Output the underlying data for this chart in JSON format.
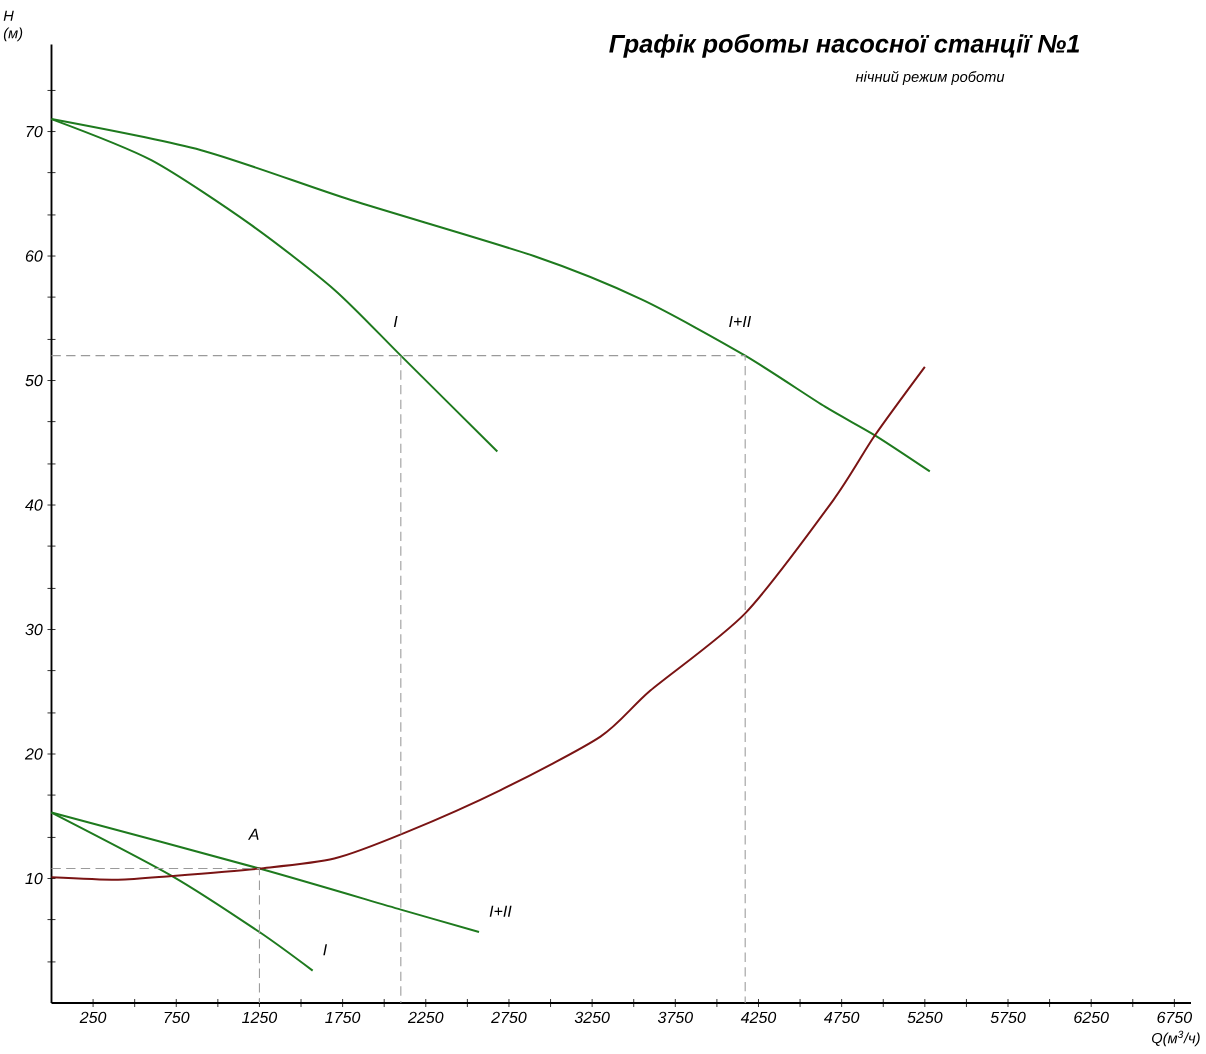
{
  "chart_data": {
    "type": "line",
    "title": "Графік роботы насосної станції №1",
    "subtitle": "нічний режим роботи",
    "xlabel": "Q(м$^{3}$/ч)",
    "ylabel": "H (м)",
    "xlim": [
      0,
      6850
    ],
    "ylim": [
      0,
      77
    ],
    "xticks": [
      250,
      {
        "value": 500,
        "label": null
      },
      750,
      {
        "value": 1000,
        "label": null
      },
      1250,
      {
        "value": 1500,
        "label": null
      },
      1750,
      {
        "value": 2000,
        "label": null
      },
      2250,
      {
        "value": 2500,
        "label": null
      },
      2750,
      {
        "value": 3000,
        "label": null
      },
      3250,
      {
        "value": 3500,
        "label": null
      },
      3750,
      {
        "value": 4000,
        "label": null
      },
      4250,
      {
        "value": 4500,
        "label": null
      },
      4750,
      {
        "value": 5000,
        "label": null
      },
      5250,
      {
        "value": 5500,
        "label": null
      },
      5750,
      {
        "value": 6000,
        "label": null
      },
      6250,
      {
        "value": 6500,
        "label": null
      },
      6750
    ],
    "yticks": [
      {
        "value": 3.3,
        "label": null
      },
      {
        "value": 6.7,
        "label": null
      },
      10,
      {
        "value": 13.3,
        "label": null
      },
      {
        "value": 16.7,
        "label": null
      },
      20,
      {
        "value": 23.3,
        "label": null
      },
      {
        "value": 26.7,
        "label": null
      },
      30,
      {
        "value": 33.3,
        "label": null
      },
      {
        "value": 36.7,
        "label": null
      },
      40,
      {
        "value": 43.3,
        "label": null
      },
      {
        "value": 46.7,
        "label": null
      },
      50,
      {
        "value": 53.3,
        "label": null
      },
      {
        "value": 56.7,
        "label": null
      },
      60,
      {
        "value": 63.3,
        "label": null
      },
      {
        "value": 66.7,
        "label": null
      },
      70,
      {
        "value": 73.3,
        "label": null
      }
    ],
    "series": [
      {
        "color": "#1e7a1e",
        "x": [
          0,
          600,
          1200,
          1700,
          2100,
          2680
        ],
        "values": [
          71,
          67.7,
          62.5,
          57.3,
          52,
          44.3
        ]
      },
      {
        "color": "#1e7a1e",
        "x": [
          0,
          900,
          1800,
          2900,
          3550,
          4170,
          4650,
          4950,
          5280
        ],
        "values": [
          71,
          68.5,
          64.5,
          60,
          56.5,
          52,
          47.9,
          45.6,
          42.7
        ]
      },
      {
        "color": "#1e7a1e",
        "x": [
          0,
          725,
          1250,
          1570
        ],
        "values": [
          15.3,
          10.2,
          5.7,
          2.6
        ]
      },
      {
        "color": "#1e7a1e",
        "x": [
          0,
          1250,
          2100,
          2570
        ],
        "values": [
          15.3,
          10.8,
          7.5,
          5.7
        ]
      },
      {
        "color": "#7a1414",
        "x": [
          0,
          400,
          725,
          1250,
          1700,
          2130,
          2700,
          3300,
          3600,
          4170,
          4700,
          4950,
          5250
        ],
        "values": [
          10.1,
          9.9,
          10.2,
          10.8,
          11.6,
          13.7,
          17.1,
          21.4,
          25.1,
          31.3,
          40.4,
          45.6,
          51.1
        ]
      },
      {
        "color": "#9a9a9a",
        "line_style": "dashed",
        "x": [
          0,
          1250,
          1250
        ],
        "values": [
          10.8,
          10.8,
          0
        ]
      },
      {
        "color": "#9a9a9a",
        "line_style": "dashed",
        "x": [
          0,
          4170,
          4170
        ],
        "values": [
          52,
          52,
          0
        ]
      },
      {
        "color": "#9a9a9a",
        "line_style": "dashed",
        "x": [
          2100,
          2100
        ],
        "values": [
          52,
          0
        ]
      }
    ],
    "annotations": [
      {
        "text": "I",
        "x": 2100,
        "y": 52
      },
      {
        "text": "I+II",
        "x": 4170,
        "y": 52
      },
      {
        "text": "A",
        "x": 1250,
        "y": 10.8
      },
      {
        "text": "I+II",
        "x": 2570,
        "y": 5.7
      },
      {
        "text": "I",
        "x": 1570,
        "y": 2.6
      }
    ]
  }
}
